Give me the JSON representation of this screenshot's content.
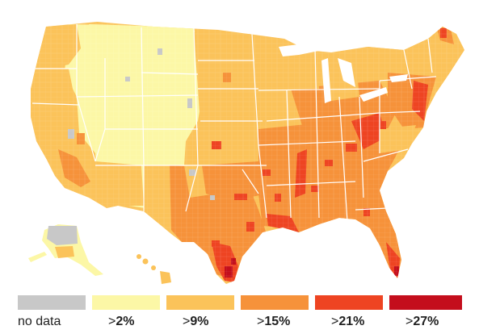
{
  "colors": {
    "no_data": "#c8c8c8",
    "bin_2": "#fcf7a6",
    "bin_9": "#fbc35a",
    "bin_15": "#f6923a",
    "bin_21": "#ee4422",
    "bin_27": "#c40e1c",
    "state_border": "#ffffff",
    "background": "#ffffff"
  },
  "legend": [
    {
      "id": "no-data",
      "text": "no data",
      "prefix": "",
      "value": "",
      "color_key": "no_data"
    },
    {
      "id": "2",
      "text": "",
      "prefix": ">",
      "value": "2%",
      "color_key": "bin_2"
    },
    {
      "id": "9",
      "text": "",
      "prefix": ">",
      "value": "9%",
      "color_key": "bin_9"
    },
    {
      "id": "15",
      "text": "",
      "prefix": ">",
      "value": "15%",
      "color_key": "bin_15"
    },
    {
      "id": "21",
      "text": "",
      "prefix": ">",
      "value": "21%",
      "color_key": "bin_21"
    },
    {
      "id": "27",
      "text": "",
      "prefix": ">",
      "value": "27%",
      "color_key": "bin_27"
    }
  ],
  "map": {
    "type": "choropleth",
    "region": "United States counties",
    "insets": [
      "Alaska",
      "Hawaii"
    ]
  }
}
